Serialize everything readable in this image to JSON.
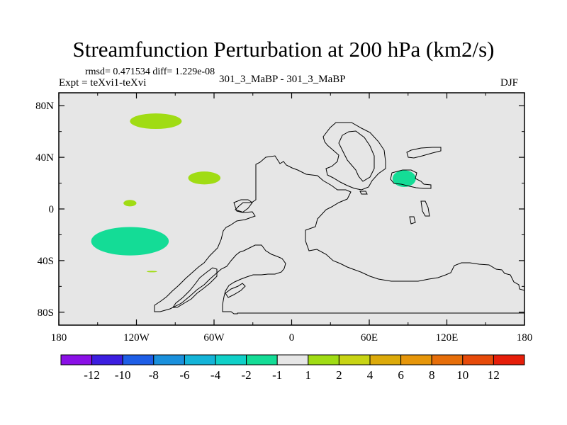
{
  "chart_data": {
    "type": "heatmap",
    "title": "Streamfunction Perturbation at 200 hPa (km2/s)",
    "stats_line": "rmsd= 0.471534 diff= 1.229e-08",
    "experiment_label": "Expt = teXvi1-teXvi",
    "center_label": "301_3_MaBP - 301_3_MaBP",
    "season_label": "DJF",
    "x_axis": {
      "range": [
        -180,
        180
      ],
      "ticks": [
        -180,
        -120,
        -60,
        0,
        60,
        120,
        180
      ],
      "tick_labels": [
        "180",
        "120W",
        "60W",
        "0",
        "60E",
        "120E",
        "180"
      ]
    },
    "y_axis": {
      "range": [
        -90,
        90
      ],
      "ticks": [
        80,
        40,
        0,
        -40,
        -80
      ],
      "tick_labels": [
        "80N",
        "40N",
        "0",
        "40S",
        "80S"
      ]
    },
    "colorbar": {
      "colors": [
        "#8a10e6",
        "#3c1ee0",
        "#1e5ee6",
        "#1a90dc",
        "#14b4d8",
        "#10d0c8",
        "#14dc96",
        "#e6e6e6",
        "#a0dc14",
        "#c8d414",
        "#dcaa0a",
        "#e6960a",
        "#e66e0a",
        "#e64a0a",
        "#e61e0a"
      ],
      "labels": [
        "-12",
        "-10",
        "-8",
        "-6",
        "-4",
        "-2",
        "-1",
        "1",
        "2",
        "4",
        "6",
        "8",
        "10",
        "12"
      ]
    },
    "anomaly_regions": [
      {
        "name": "north-pacific-positive",
        "level": "1 to 2",
        "color": "#a0dc14",
        "lon": [
          -125,
          -85
        ],
        "lat": [
          62,
          74
        ]
      },
      {
        "name": "central-pacific-positive",
        "level": "1 to 2",
        "color": "#a0dc14",
        "lon": [
          -80,
          -55
        ],
        "lat": [
          19,
          29
        ]
      },
      {
        "name": "equatorial-pacific-positive",
        "level": "1 to 2",
        "color": "#a0dc14",
        "lon": [
          -130,
          -120
        ],
        "lat": [
          2,
          7
        ]
      },
      {
        "name": "southeast-pacific-negative",
        "level": "-2 to -1",
        "color": "#14dc96",
        "lon": [
          -155,
          -95
        ],
        "lat": [
          -36,
          -14
        ]
      },
      {
        "name": "south-pacific-small-positive",
        "level": "1 to 2",
        "color": "#a0dc14",
        "lon": [
          -112,
          -104
        ],
        "lat": [
          -49,
          -48
        ]
      },
      {
        "name": "tibet-negative",
        "level": "-2 to -1",
        "color": "#14dc96",
        "lon": [
          78,
          96
        ],
        "lat": [
          17,
          30
        ]
      }
    ]
  }
}
